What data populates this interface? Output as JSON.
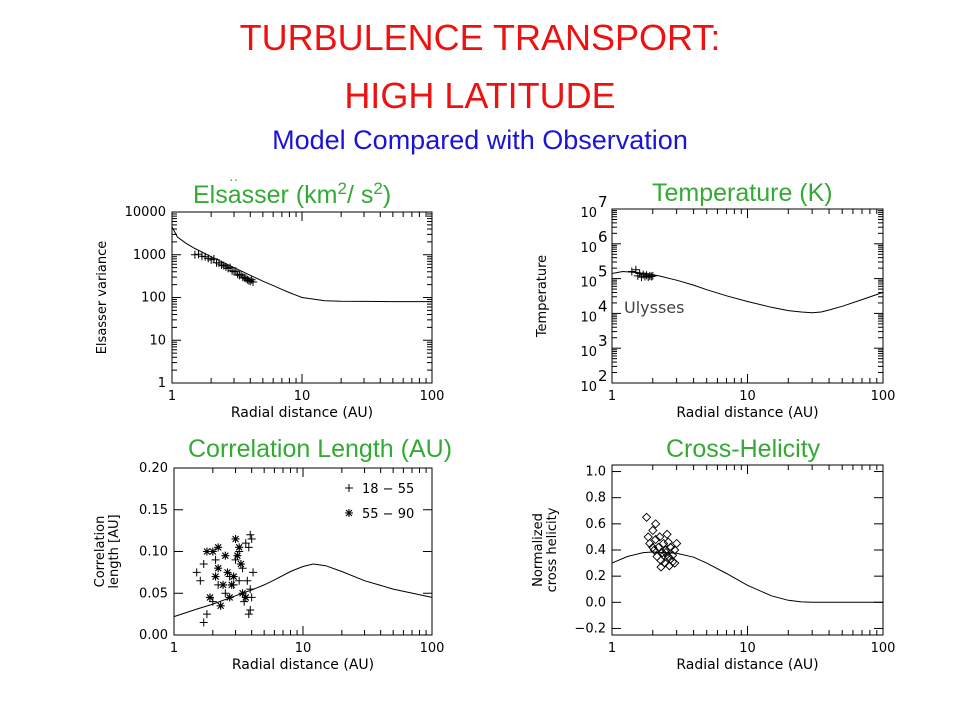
{
  "header": {
    "title_line1": "TURBULENCE TRANSPORT:",
    "title_line2": "HIGH LATITUDE",
    "subtitle": "Model Compared with Observation"
  },
  "colors": {
    "title": "#ee1111",
    "subtitle": "#1a14d6",
    "panel_title": "#33aa33",
    "ink": "#000000"
  },
  "chart_data": [
    {
      "type": "line",
      "title": "Elsasser (km2 / s2)",
      "title_text": "Elsasser (km",
      "title_sup1": "2",
      "title_mid": "/ s",
      "title_sup2": "2",
      "title_end": ")",
      "xlabel": "Radial distance (AU)",
      "ylabel": "Elsasser variance",
      "xscale": "log",
      "yscale": "log",
      "xlim": [
        1,
        100
      ],
      "ylim": [
        1,
        10000
      ],
      "xticks": [
        1,
        10,
        100
      ],
      "xtick_labels": [
        "1",
        "10",
        "100"
      ],
      "yticks": [
        1,
        10,
        100,
        1000,
        10000
      ],
      "ytick_labels": [
        "1",
        "10",
        "100",
        "1000",
        "10000"
      ],
      "grid": false,
      "series": [
        {
          "kind": "line",
          "x": [
            1,
            1.1,
            1.3,
            1.5,
            2,
            2.5,
            3,
            4,
            5,
            6,
            7,
            8,
            9,
            10,
            15,
            20,
            30,
            50,
            100
          ],
          "y": [
            4500,
            2600,
            1800,
            1400,
            900,
            650,
            500,
            330,
            240,
            190,
            155,
            130,
            113,
            100,
            84,
            82,
            81,
            80,
            80
          ]
        },
        {
          "kind": "scatter",
          "marker": "plus",
          "x": [
            1.5,
            1.6,
            1.7,
            1.8,
            1.9,
            2.0,
            2.1,
            2.2,
            2.3,
            2.4,
            2.5,
            2.6,
            2.7,
            2.8,
            2.9,
            3.0,
            3.1,
            3.2,
            3.3,
            3.4,
            3.5,
            3.6,
            3.7,
            3.8,
            3.9,
            4.0,
            4.1,
            4.2
          ],
          "y": [
            1000,
            1030,
            920,
            900,
            820,
            760,
            800,
            650,
            640,
            580,
            560,
            520,
            480,
            500,
            420,
            400,
            410,
            350,
            330,
            340,
            300,
            290,
            280,
            260,
            250,
            240,
            260,
            230
          ]
        }
      ]
    },
    {
      "type": "line",
      "title": "Temperature (K)",
      "xlabel": "Radial distance (AU)",
      "ylabel": "Temperature",
      "annotation": "Ulysses",
      "xscale": "log",
      "yscale": "log",
      "xlim": [
        1,
        100
      ],
      "ylim": [
        100,
        10000000
      ],
      "xticks": [
        1,
        10,
        100
      ],
      "xtick_labels": [
        "1",
        "10",
        "100"
      ],
      "yticks": [
        100,
        1000,
        10000,
        100000,
        1000000,
        10000000
      ],
      "ytick_bases": [
        "10",
        "10",
        "10",
        "10",
        "10",
        "10"
      ],
      "ytick_exps": [
        "2",
        "3",
        "4",
        "5",
        "6",
        "7"
      ],
      "grid": false,
      "series": [
        {
          "kind": "line",
          "x": [
            1,
            1.2,
            1.5,
            1.8,
            2.2,
            3,
            4,
            5,
            7,
            10,
            15,
            20,
            25,
            30,
            35,
            40,
            50,
            70,
            100
          ],
          "y": [
            140000,
            160000,
            150000,
            140000,
            120000,
            90000,
            65000,
            48000,
            32000,
            22000,
            15000,
            12000,
            11000,
            10500,
            11000,
            12500,
            16000,
            25000,
            40000
          ]
        },
        {
          "kind": "scatter",
          "marker": "plus",
          "x": [
            1.4,
            1.5,
            1.55,
            1.6,
            1.65,
            1.7,
            1.75,
            1.8,
            1.85,
            1.9,
            1.95,
            2.0
          ],
          "y": [
            160000,
            180000,
            120000,
            140000,
            110000,
            130000,
            115000,
            125000,
            110000,
            120000,
            115000,
            120000
          ]
        }
      ]
    },
    {
      "type": "line",
      "title": "Correlation Length (AU)",
      "xlabel": "Radial distance (AU)",
      "ylabel_line1": "Correlation",
      "ylabel_line2": "length [AU]",
      "xscale": "log",
      "yscale": "linear",
      "xlim": [
        1,
        100
      ],
      "ylim": [
        0,
        0.2
      ],
      "xticks": [
        1,
        10,
        100
      ],
      "xtick_labels": [
        "1",
        "10",
        "100"
      ],
      "yticks": [
        0,
        0.05,
        0.1,
        0.15,
        0.2
      ],
      "ytick_labels": [
        "0.00",
        "0.05",
        "0.10",
        "0.15",
        "0.20"
      ],
      "legend": [
        {
          "marker": "plus",
          "label": "18 − 55"
        },
        {
          "marker": "star",
          "label": "55 − 90"
        }
      ],
      "legend_position": "top-right",
      "grid": false,
      "series": [
        {
          "kind": "line",
          "x": [
            1,
            1.5,
            2,
            3,
            4,
            5,
            6,
            8,
            10,
            12,
            15,
            20,
            30,
            50,
            100
          ],
          "y": [
            0.022,
            0.031,
            0.037,
            0.047,
            0.054,
            0.06,
            0.066,
            0.076,
            0.082,
            0.085,
            0.083,
            0.076,
            0.065,
            0.055,
            0.045
          ]
        },
        {
          "kind": "scatter",
          "marker": "plus",
          "name": "18 − 55",
          "x": [
            1.5,
            1.6,
            1.7,
            1.8,
            2.0,
            2.2,
            2.5,
            2.7,
            3.0,
            3.2,
            3.4,
            3.6,
            3.8,
            3.9,
            1.7,
            2.9,
            3.5,
            3.9,
            4.0,
            3.7,
            4.1,
            2.1,
            3.8,
            4.0,
            3.9,
            3.2
          ],
          "y": [
            0.075,
            0.065,
            0.015,
            0.025,
            0.04,
            0.06,
            0.05,
            0.07,
            0.09,
            0.1,
            0.08,
            0.11,
            0.105,
            0.12,
            0.085,
            0.06,
            0.04,
            0.03,
            0.045,
            0.065,
            0.075,
            0.09,
            0.025,
            0.115,
            0.055,
            0.065
          ]
        },
        {
          "kind": "scatter",
          "marker": "star",
          "name": "55 − 90",
          "x": [
            1.8,
            1.9,
            2.0,
            2.1,
            2.2,
            2.3,
            2.5,
            2.6,
            2.8,
            2.9,
            3.0,
            3.1,
            3.3,
            3.4,
            2.4,
            2.7,
            3.2,
            3.6,
            2.2
          ],
          "y": [
            0.1,
            0.045,
            0.1,
            0.07,
            0.105,
            0.035,
            0.095,
            0.075,
            0.06,
            0.07,
            0.115,
            0.095,
            0.085,
            0.05,
            0.06,
            0.045,
            0.105,
            0.045,
            0.08
          ]
        }
      ]
    },
    {
      "type": "line",
      "title": "Cross-Helicity",
      "xlabel": "Radial distance (AU)",
      "ylabel_line1": "Normalized",
      "ylabel_line2": "cross helicity",
      "xscale": "log",
      "yscale": "linear",
      "xlim": [
        1,
        100
      ],
      "ylim": [
        -0.25,
        1.05
      ],
      "xticks": [
        1,
        10,
        100
      ],
      "xtick_labels": [
        "1",
        "10",
        "100"
      ],
      "yticks": [
        -0.2,
        0,
        0.2,
        0.4,
        0.6,
        0.8,
        1.0
      ],
      "ytick_labels": [
        "−0.2",
        "0.0",
        "0.2",
        "0.4",
        "0.6",
        "0.8",
        "1.0"
      ],
      "grid": false,
      "series": [
        {
          "kind": "line",
          "x": [
            1,
            1.3,
            1.7,
            2,
            3,
            4,
            5,
            7,
            10,
            15,
            20,
            25,
            30,
            40,
            60,
            100
          ],
          "y": [
            0.3,
            0.35,
            0.38,
            0.385,
            0.375,
            0.345,
            0.3,
            0.22,
            0.13,
            0.05,
            0.015,
            0.003,
            0,
            0,
            0,
            0
          ]
        },
        {
          "kind": "scatter",
          "marker": "diamond",
          "x": [
            1.8,
            1.85,
            1.9,
            2.0,
            2.05,
            2.1,
            2.15,
            2.2,
            2.25,
            2.3,
            2.35,
            2.4,
            2.45,
            2.5,
            2.55,
            2.6,
            2.65,
            2.7,
            2.8,
            2.9,
            3.0,
            2.1,
            2.3,
            2.5,
            2.7,
            2.9,
            2.0,
            2.4,
            2.6,
            2.8
          ],
          "y": [
            0.65,
            0.5,
            0.45,
            0.55,
            0.4,
            0.48,
            0.35,
            0.42,
            0.5,
            0.32,
            0.38,
            0.45,
            0.3,
            0.4,
            0.52,
            0.35,
            0.28,
            0.42,
            0.36,
            0.3,
            0.45,
            0.6,
            0.27,
            0.38,
            0.33,
            0.4,
            0.42,
            0.36,
            0.46,
            0.31
          ]
        }
      ]
    }
  ]
}
